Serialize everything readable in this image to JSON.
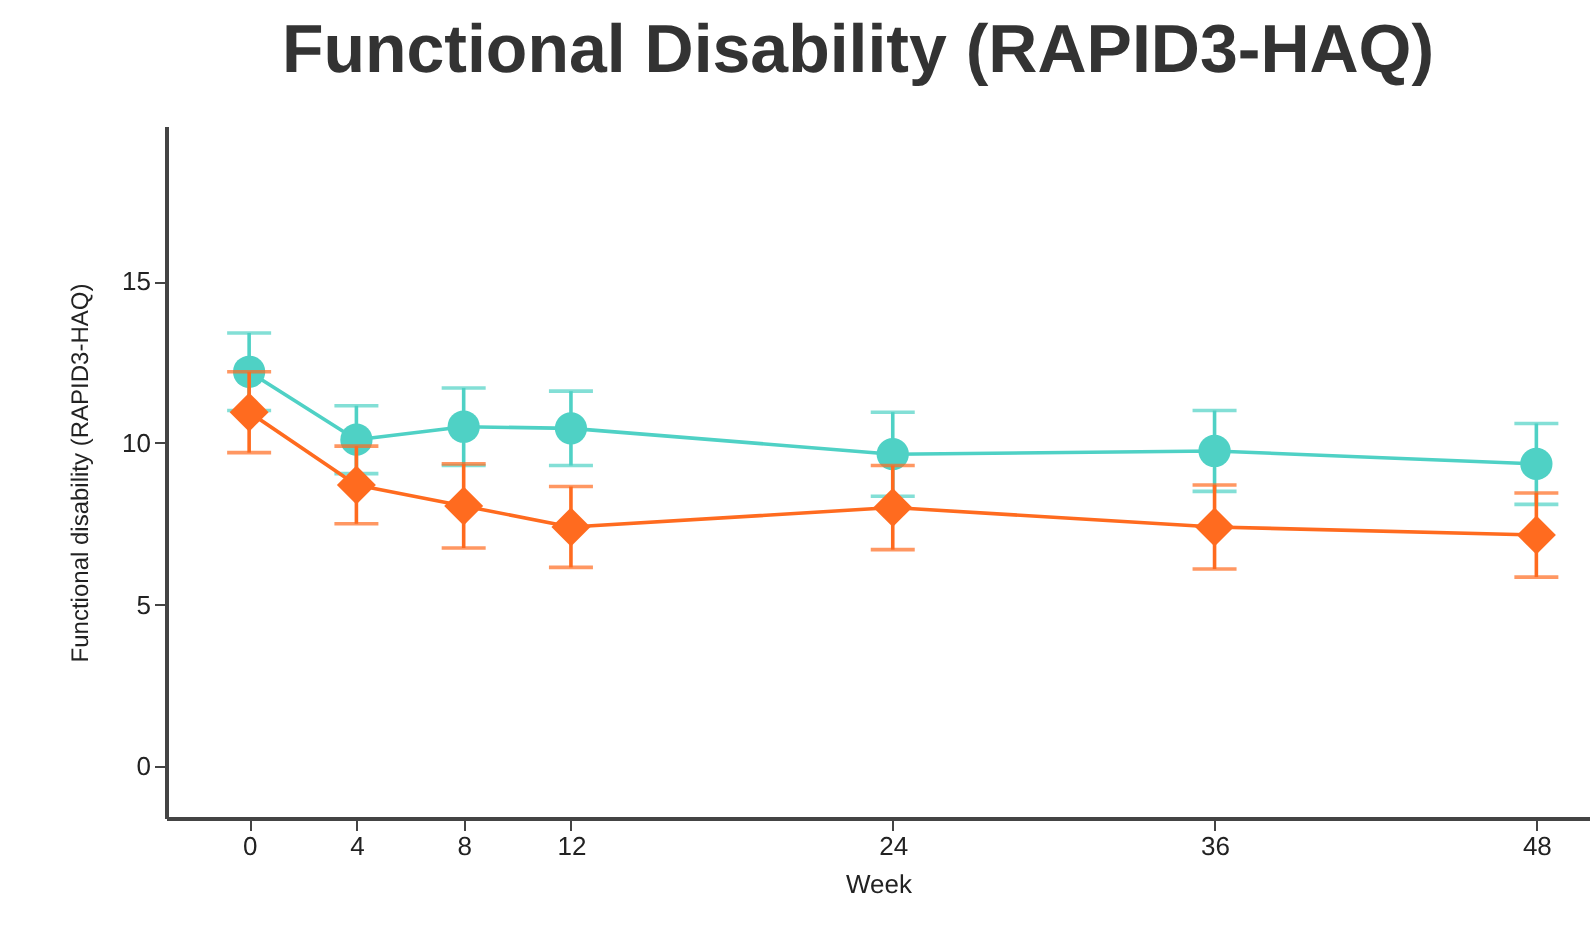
{
  "chart_data": {
    "type": "line",
    "title": "Functional Disability (RAPID3-HAQ)",
    "xlabel": "Week",
    "ylabel": "Functional disability (RAPID3-HAQ)",
    "x": [
      0,
      4,
      8,
      12,
      24,
      36,
      48
    ],
    "series": [
      {
        "color": "#4fd1c5",
        "marker": "circle",
        "values": [
          12.2,
          10.1,
          10.5,
          10.45,
          9.65,
          9.75,
          9.35
        ],
        "errors": [
          1.2,
          1.05,
          1.2,
          1.15,
          1.3,
          1.25,
          1.25
        ]
      },
      {
        "color": "#ff6b1f",
        "marker": "diamond",
        "values": [
          10.95,
          8.7,
          8.05,
          7.4,
          8.0,
          7.4,
          7.15
        ],
        "errors": [
          1.25,
          1.2,
          1.3,
          1.25,
          1.3,
          1.3,
          1.3
        ]
      }
    ],
    "xlim": [
      -3.1,
      50
    ],
    "xticks": [
      0,
      4,
      8,
      12,
      24,
      36,
      48
    ],
    "ylim": [
      -1.6,
      19.8
    ],
    "yticks": [
      0,
      5,
      10,
      15
    ],
    "grid": false,
    "line_style": "solid"
  }
}
